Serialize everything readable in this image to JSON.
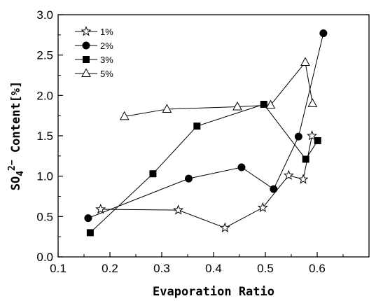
{
  "chart_data": {
    "type": "line",
    "xlabel": "Evaporation Ratio",
    "ylabel_parts": {
      "base": "SO",
      "sub": "4",
      "sup": "2−",
      "rest": " Content[%]"
    },
    "xlim": [
      0.1,
      0.7
    ],
    "ylim": [
      0.0,
      3.0
    ],
    "xticks": [
      "0.1",
      "0.2",
      "0.3",
      "0.4",
      "0.5",
      "0.6"
    ],
    "xtick_values": [
      0.1,
      0.2,
      0.3,
      0.4,
      0.5,
      0.6
    ],
    "yticks": [
      "0.0",
      "0.5",
      "1.0",
      "1.5",
      "2.0",
      "2.5",
      "3.0"
    ],
    "ytick_values": [
      0.0,
      0.5,
      1.0,
      1.5,
      2.0,
      2.5,
      3.0
    ],
    "grid": false,
    "legend_position": "top-left",
    "series": [
      {
        "name": "1%",
        "marker": "star-open",
        "x": [
          0.182,
          0.332,
          0.422,
          0.495,
          0.545,
          0.573,
          0.59
        ],
        "y": [
          0.59,
          0.58,
          0.36,
          0.61,
          1.01,
          0.96,
          1.5
        ]
      },
      {
        "name": "2%",
        "marker": "circle-filled",
        "x": [
          0.158,
          0.352,
          0.454,
          0.516,
          0.564,
          0.612
        ],
        "y": [
          0.48,
          0.97,
          1.11,
          0.84,
          1.49,
          2.77
        ]
      },
      {
        "name": "3%",
        "marker": "square-filled",
        "x": [
          0.162,
          0.283,
          0.368,
          0.497,
          0.578,
          0.601
        ],
        "y": [
          0.3,
          1.03,
          1.62,
          1.89,
          1.21,
          1.44
        ]
      },
      {
        "name": "5%",
        "marker": "triangle-open",
        "x": [
          0.228,
          0.31,
          0.446,
          0.51,
          0.577,
          0.591
        ],
        "y": [
          1.74,
          1.83,
          1.86,
          1.88,
          2.41,
          1.9
        ]
      }
    ]
  }
}
